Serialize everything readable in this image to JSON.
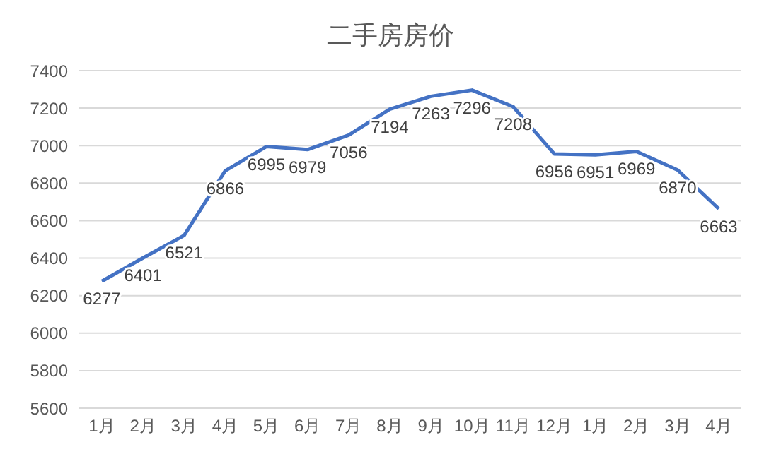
{
  "chart_data": {
    "type": "line",
    "title": "二手房房价",
    "categories": [
      "1月",
      "2月",
      "3月",
      "4月",
      "5月",
      "6月",
      "7月",
      "8月",
      "9月",
      "10月",
      "11月",
      "12月",
      "1月",
      "2月",
      "3月",
      "4月"
    ],
    "series": [
      {
        "color": "#4472c4",
        "values": [
          6277,
          6401,
          6521,
          6866,
          6995,
          6979,
          7056,
          7194,
          7263,
          7296,
          7208,
          6956,
          6951,
          6969,
          6870,
          6663
        ]
      }
    ],
    "ylim": [
      5600,
      7400
    ],
    "yticks": [
      5600,
      5800,
      6000,
      6200,
      6400,
      6600,
      6800,
      7000,
      7200,
      7400
    ],
    "grid": "y",
    "marker": "none",
    "line_style": "solid",
    "data_labels": true
  }
}
